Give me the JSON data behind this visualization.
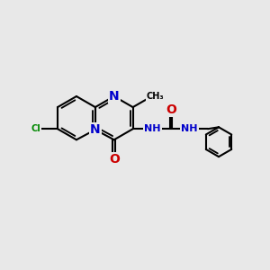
{
  "background_color": "#e8e8e8",
  "bond_color": "#000000",
  "bond_width": 1.5,
  "atom_colors": {
    "C": "#000000",
    "N": "#0000cc",
    "O": "#cc0000",
    "Cl": "#008800",
    "H": "#777777"
  },
  "font_size": 8.5,
  "fig_width": 3.0,
  "fig_height": 3.0,
  "dpi": 100,
  "xlim": [
    0,
    10
  ],
  "ylim": [
    0,
    10
  ]
}
